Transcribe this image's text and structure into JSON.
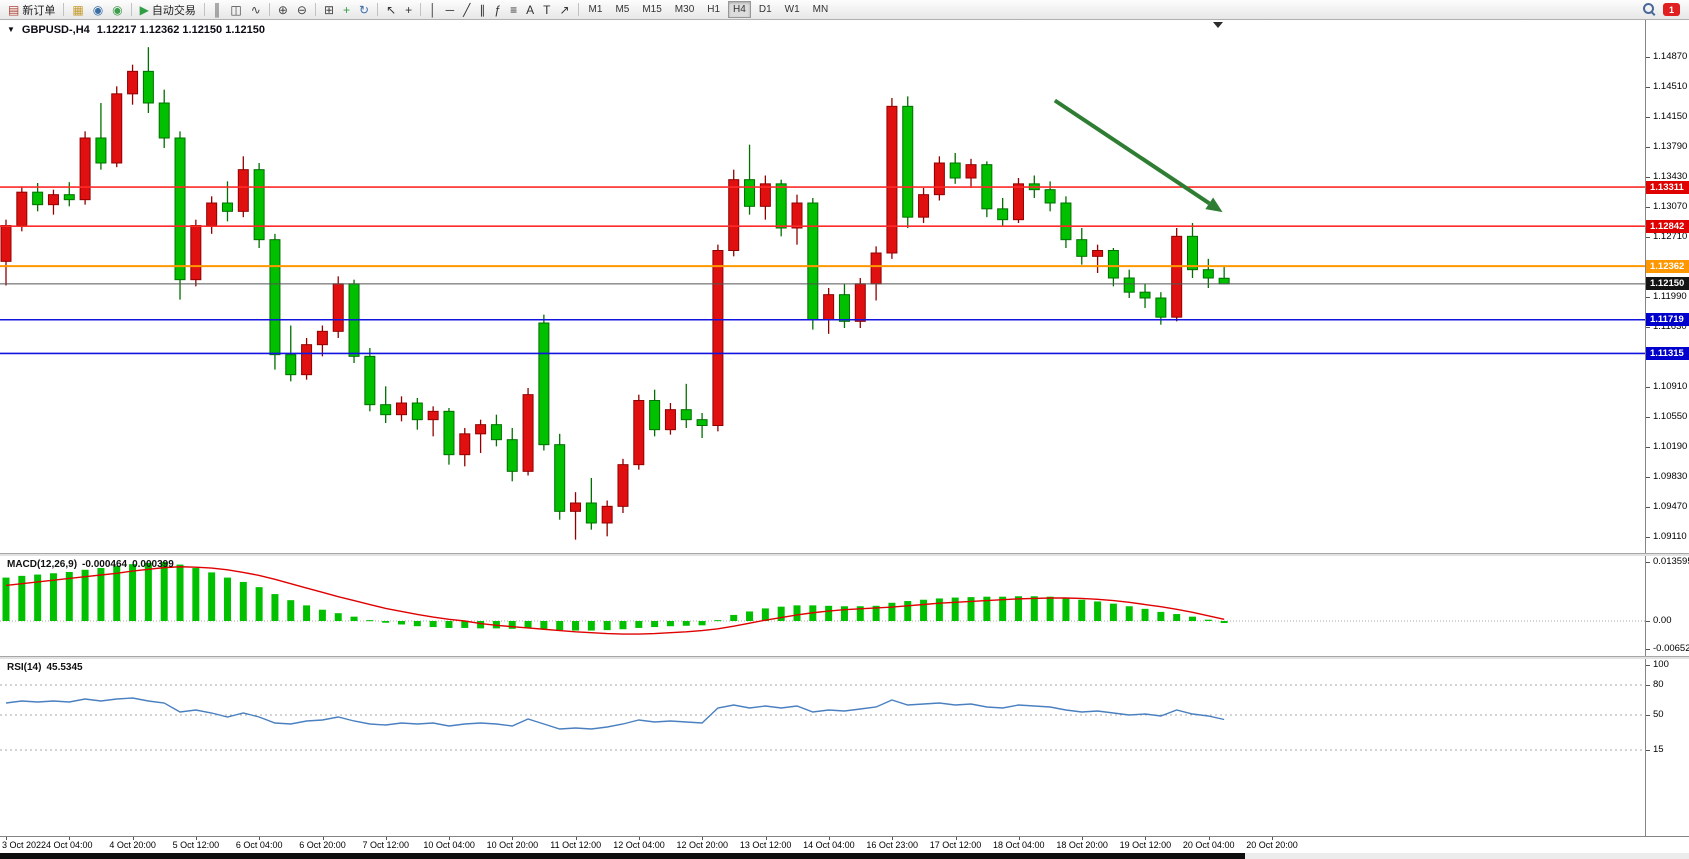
{
  "toolbar": {
    "groups": [
      {
        "items": [
          {
            "button": "new-order-button",
            "icon": "new-order-icon",
            "glyph": "▤",
            "color": "#b04030",
            "label": "新订单"
          }
        ]
      },
      {
        "items": [
          {
            "button": "charts-button",
            "icon": "charts-icon",
            "glyph": "▦",
            "color": "#c59a2b"
          },
          {
            "button": "profiles-button",
            "icon": "profiles-icon",
            "glyph": "◉",
            "color": "#3a6ea5"
          },
          {
            "button": "market-watch-button",
            "icon": "market-watch-icon",
            "glyph": "◉",
            "color": "#3f9e4d"
          }
        ]
      },
      {
        "items": [
          {
            "button": "auto-trading-button",
            "icon": "auto-trading-icon",
            "glyph": "▶",
            "color": "#2f9e44",
            "label": "自动交易"
          }
        ]
      },
      {
        "items": [
          {
            "button": "bar-chart-button",
            "icon": "bar-chart-icon",
            "glyph": "║",
            "color": "#444444"
          },
          {
            "button": "candlestick-chart-button",
            "icon": "candlestick-icon",
            "glyph": "◫",
            "color": "#444444"
          },
          {
            "button": "line-chart-button",
            "icon": "line-chart-icon",
            "glyph": "∿",
            "color": "#444444"
          }
        ]
      },
      {
        "items": [
          {
            "button": "zoom-in-button",
            "icon": "zoom-in-icon",
            "glyph": "⊕",
            "color": "#444444"
          },
          {
            "button": "zoom-out-button",
            "icon": "zoom-out-icon",
            "glyph": "⊖",
            "color": "#444444"
          }
        ]
      },
      {
        "items": [
          {
            "button": "tile-windows-button",
            "icon": "tile-windows-icon",
            "glyph": "⊞",
            "color": "#444444"
          },
          {
            "button": "indicators-button",
            "icon": "indicators-icon",
            "glyph": "+",
            "color": "#2f9e44"
          },
          {
            "button": "periods-button",
            "icon": "periods-icon",
            "glyph": "↻",
            "color": "#3a6ea5"
          }
        ]
      },
      {
        "items": [
          {
            "button": "cursor-button",
            "icon": "cursor-icon",
            "glyph": "↖",
            "color": "#333333"
          },
          {
            "button": "crosshair-button",
            "icon": "crosshair-icon",
            "glyph": "+",
            "color": "#333333"
          }
        ]
      },
      {
        "items": [
          {
            "button": "vertical-line-button",
            "icon": "vertical-line-icon",
            "glyph": "│",
            "color": "#333333"
          },
          {
            "button": "horizontal-line-button",
            "icon": "horizontal-line-icon",
            "glyph": "─",
            "color": "#333333"
          },
          {
            "button": "trendline-button",
            "icon": "trendline-icon",
            "glyph": "╱",
            "color": "#333333"
          },
          {
            "button": "channel-button",
            "icon": "channel-icon",
            "glyph": "∥",
            "color": "#333333"
          },
          {
            "button": "fibonacci-button",
            "icon": "fibonacci-icon",
            "glyph": "ƒ",
            "color": "#333333"
          },
          {
            "button": "grid-levels-button",
            "icon": "grid-levels-icon",
            "glyph": "≡",
            "color": "#333333"
          },
          {
            "button": "text-button",
            "icon": "text-icon",
            "glyph": "A",
            "color": "#333333"
          },
          {
            "button": "text-label-button",
            "icon": "text-label-icon",
            "glyph": "T",
            "color": "#333333"
          },
          {
            "button": "arrows-button",
            "icon": "arrows-icon",
            "glyph": "↗",
            "color": "#333333"
          }
        ]
      }
    ],
    "timeframes": [
      "M1",
      "M5",
      "M15",
      "M30",
      "H1",
      "H4",
      "D1",
      "W1",
      "MN"
    ],
    "active_timeframe": "H4",
    "notification_badge": "1"
  },
  "quote_line": {
    "symbol": "GBPUSD-,H4",
    "ohlc": "1.12217 1.12362 1.12150 1.12150"
  },
  "macd_label": {
    "name": "MACD(12,26,9)",
    "value1": "-0.000464",
    "value2": "0.000399"
  },
  "rsi_label": {
    "name": "RSI(14)",
    "value": "45.5345"
  },
  "chart_data": {
    "type": "candlestick+indicators",
    "symbol": "GBPUSD-",
    "timeframe": "H4",
    "colors": {
      "up": "#e01010",
      "up_edge": "#900000",
      "down": "#00c000",
      "down_edge": "#007000",
      "macd_hist": "#00c000",
      "macd_signal": "#e00000",
      "rsi_line": "#4a80c0"
    },
    "candles": [
      [
        1.1242,
        1.1292,
        1.1213,
        1.1285
      ],
      [
        1.1285,
        1.1332,
        1.1278,
        1.1325
      ],
      [
        1.1325,
        1.1336,
        1.1302,
        1.131
      ],
      [
        1.131,
        1.1328,
        1.1298,
        1.1322
      ],
      [
        1.1322,
        1.1337,
        1.1308,
        1.1316
      ],
      [
        1.1316,
        1.1398,
        1.131,
        1.139
      ],
      [
        1.139,
        1.1432,
        1.1352,
        1.136
      ],
      [
        1.136,
        1.1452,
        1.1355,
        1.1443
      ],
      [
        1.1443,
        1.1478,
        1.143,
        1.147
      ],
      [
        1.147,
        1.1499,
        1.142,
        1.1432
      ],
      [
        1.1432,
        1.1448,
        1.1378,
        1.139
      ],
      [
        1.139,
        1.1398,
        1.1196,
        1.122
      ],
      [
        1.122,
        1.1292,
        1.1212,
        1.1285
      ],
      [
        1.1285,
        1.132,
        1.1275,
        1.1312
      ],
      [
        1.1312,
        1.1338,
        1.129,
        1.1302
      ],
      [
        1.1302,
        1.1368,
        1.1295,
        1.1352
      ],
      [
        1.1352,
        1.136,
        1.1258,
        1.1268
      ],
      [
        1.1268,
        1.1275,
        1.1112,
        1.113
      ],
      [
        1.113,
        1.1165,
        1.1098,
        1.1106
      ],
      [
        1.1106,
        1.115,
        1.11,
        1.1142
      ],
      [
        1.1142,
        1.1165,
        1.1128,
        1.1158
      ],
      [
        1.1158,
        1.1224,
        1.115,
        1.1215
      ],
      [
        1.1215,
        1.122,
        1.112,
        1.1128
      ],
      [
        1.1128,
        1.1138,
        1.1062,
        1.107
      ],
      [
        1.107,
        1.1092,
        1.1048,
        1.1058
      ],
      [
        1.1058,
        1.108,
        1.105,
        1.1072
      ],
      [
        1.1072,
        1.1078,
        1.104,
        1.1052
      ],
      [
        1.1052,
        1.1068,
        1.1032,
        1.1062
      ],
      [
        1.1062,
        1.1066,
        1.0998,
        1.101
      ],
      [
        1.101,
        1.1042,
        1.0996,
        1.1035
      ],
      [
        1.1035,
        1.1052,
        1.1012,
        1.1046
      ],
      [
        1.1046,
        1.1058,
        1.102,
        1.1028
      ],
      [
        1.1028,
        1.1042,
        1.0978,
        1.099
      ],
      [
        1.099,
        1.109,
        1.0985,
        1.1082
      ],
      [
        1.1168,
        1.1178,
        1.1015,
        1.1022
      ],
      [
        1.1022,
        1.1035,
        1.0932,
        1.0942
      ],
      [
        1.0942,
        1.0965,
        1.0908,
        1.0952
      ],
      [
        1.0952,
        1.0982,
        1.092,
        1.0928
      ],
      [
        1.0928,
        1.0955,
        1.0912,
        1.0948
      ],
      [
        1.0948,
        1.1005,
        1.094,
        1.0998
      ],
      [
        1.0998,
        1.1082,
        1.0992,
        1.1075
      ],
      [
        1.1075,
        1.1088,
        1.1032,
        1.104
      ],
      [
        1.104,
        1.1072,
        1.1034,
        1.1064
      ],
      [
        1.1064,
        1.1095,
        1.1042,
        1.1052
      ],
      [
        1.1052,
        1.106,
        1.103,
        1.1045
      ],
      [
        1.1045,
        1.1262,
        1.1038,
        1.1255
      ],
      [
        1.1255,
        1.1352,
        1.1248,
        1.134
      ],
      [
        1.134,
        1.1382,
        1.1298,
        1.1308
      ],
      [
        1.1308,
        1.1345,
        1.1292,
        1.1335
      ],
      [
        1.1335,
        1.134,
        1.1272,
        1.1282
      ],
      [
        1.1282,
        1.1322,
        1.1262,
        1.1312
      ],
      [
        1.1312,
        1.1318,
        1.116,
        1.1172
      ],
      [
        1.1172,
        1.121,
        1.1155,
        1.1202
      ],
      [
        1.1202,
        1.1215,
        1.1162,
        1.117
      ],
      [
        1.117,
        1.1222,
        1.1162,
        1.1215
      ],
      [
        1.1215,
        1.126,
        1.1195,
        1.1252
      ],
      [
        1.1252,
        1.1438,
        1.1245,
        1.1428
      ],
      [
        1.1428,
        1.144,
        1.1282,
        1.1295
      ],
      [
        1.1295,
        1.133,
        1.1288,
        1.1322
      ],
      [
        1.1322,
        1.1368,
        1.1315,
        1.136
      ],
      [
        1.136,
        1.1372,
        1.1335,
        1.1342
      ],
      [
        1.1342,
        1.1365,
        1.133,
        1.1358
      ],
      [
        1.1358,
        1.1362,
        1.1295,
        1.1305
      ],
      [
        1.1305,
        1.1318,
        1.1285,
        1.1292
      ],
      [
        1.1292,
        1.1342,
        1.1288,
        1.1335
      ],
      [
        1.1335,
        1.1345,
        1.1318,
        1.1328
      ],
      [
        1.1328,
        1.1338,
        1.1302,
        1.1312
      ],
      [
        1.1312,
        1.132,
        1.1258,
        1.1268
      ],
      [
        1.1268,
        1.1282,
        1.1238,
        1.1248
      ],
      [
        1.1248,
        1.1262,
        1.1228,
        1.1255
      ],
      [
        1.1255,
        1.1258,
        1.1212,
        1.1222
      ],
      [
        1.1222,
        1.1232,
        1.1198,
        1.1205
      ],
      [
        1.1205,
        1.1215,
        1.1186,
        1.1198
      ],
      [
        1.1198,
        1.1205,
        1.1166,
        1.1175
      ],
      [
        1.1175,
        1.1282,
        1.117,
        1.1272
      ],
      [
        1.1272,
        1.1288,
        1.1222,
        1.1232
      ],
      [
        1.1232,
        1.1245,
        1.121,
        1.1222
      ],
      [
        1.12217,
        1.12362,
        1.1215,
        1.1215
      ]
    ],
    "hlines": [
      {
        "price": 1.13311,
        "label": "1.13311",
        "line_color": "#ff2a2a",
        "badge_bg": "#df0000",
        "width": 1.6
      },
      {
        "price": 1.12842,
        "label": "1.12842",
        "line_color": "#ff2a2a",
        "badge_bg": "#df0000",
        "width": 1.6
      },
      {
        "price": 1.12362,
        "label": "1.12362",
        "line_color": "#ff9800",
        "badge_bg": "#ff9800",
        "width": 2
      },
      {
        "price": 1.1215,
        "label": "1.12150",
        "line_color": "#555555",
        "badge_bg": "#141414",
        "width": 1
      },
      {
        "price": 1.11719,
        "label": "1.11719",
        "line_color": "#1414e0",
        "badge_bg": "#0000cd",
        "width": 1.6
      },
      {
        "price": 1.11315,
        "label": "1.11315",
        "line_color": "#1414e0",
        "badge_bg": "#0000cd",
        "width": 1.6
      }
    ],
    "current_price": "1.12150",
    "price_axis_labels": [
      "1.14870",
      "1.14510",
      "1.14150",
      "1.13790",
      "1.13430",
      "1.13070",
      "1.12710",
      "1.12350",
      "1.11990",
      "1.11630",
      "1.11270",
      "1.10910",
      "1.10550",
      "1.10190",
      "1.09830",
      "1.09470",
      "1.09110"
    ],
    "time_labels": [
      "3 Oct 2022",
      "4 Oct 04:00",
      "4 Oct 20:00",
      "5 Oct 12:00",
      "6 Oct 04:00",
      "6 Oct 20:00",
      "7 Oct 12:00",
      "10 Oct 04:00",
      "10 Oct 20:00",
      "11 Oct 12:00",
      "12 Oct 04:00",
      "12 Oct 20:00",
      "13 Oct 12:00",
      "14 Oct 04:00",
      "16 Oct 23:00",
      "17 Oct 12:00",
      "18 Oct 04:00",
      "18 Oct 20:00",
      "19 Oct 12:00",
      "20 Oct 04:00",
      "20 Oct 20:00"
    ],
    "macd": {
      "histogram": [
        0.01,
        0.0104,
        0.0107,
        0.011,
        0.0113,
        0.0118,
        0.0122,
        0.0127,
        0.0131,
        0.0134,
        0.0136,
        0.013,
        0.0122,
        0.0112,
        0.01,
        0.009,
        0.0078,
        0.0062,
        0.0048,
        0.0036,
        0.0026,
        0.0018,
        0.001,
        0.0002,
        -0.0004,
        -0.0008,
        -0.0012,
        -0.0014,
        -0.0016,
        -0.0016,
        -0.0017,
        -0.0017,
        -0.0018,
        -0.0016,
        -0.0018,
        -0.0021,
        -0.0022,
        -0.0022,
        -0.0021,
        -0.0019,
        -0.0016,
        -0.0014,
        -0.0012,
        -0.0011,
        -0.001,
        0.0002,
        0.0014,
        0.0022,
        0.0029,
        0.0033,
        0.0036,
        0.0036,
        0.0035,
        0.0034,
        0.0034,
        0.0035,
        0.0042,
        0.0046,
        0.0049,
        0.0052,
        0.0054,
        0.0055,
        0.0056,
        0.0056,
        0.0057,
        0.0057,
        0.0056,
        0.0053,
        0.0049,
        0.0045,
        0.004,
        0.0034,
        0.0028,
        0.0021,
        0.0016,
        0.001,
        0.0003,
        -0.000464
      ],
      "signal": [
        0.0082,
        0.0086,
        0.009,
        0.0094,
        0.0098,
        0.0102,
        0.0106,
        0.011,
        0.0115,
        0.0119,
        0.0123,
        0.0125,
        0.0124,
        0.0122,
        0.0118,
        0.0112,
        0.0105,
        0.0096,
        0.0086,
        0.0076,
        0.0066,
        0.0056,
        0.0047,
        0.0038,
        0.0029,
        0.0022,
        0.0015,
        0.0009,
        0.0004,
        0.0,
        -0.0006,
        -0.001,
        -0.0013,
        -0.0016,
        -0.0019,
        -0.0022,
        -0.0025,
        -0.0027,
        -0.0029,
        -0.003,
        -0.003,
        -0.0029,
        -0.0027,
        -0.0025,
        -0.0022,
        -0.0018,
        -0.0012,
        -0.0005,
        0.0002,
        0.0008,
        0.0014,
        0.0019,
        0.0023,
        0.0026,
        0.0028,
        0.003,
        0.0032,
        0.0035,
        0.0038,
        0.0041,
        0.0043,
        0.0045,
        0.0047,
        0.0049,
        0.0051,
        0.0052,
        0.0053,
        0.0053,
        0.0052,
        0.005,
        0.0047,
        0.0043,
        0.0038,
        0.0033,
        0.0027,
        0.002,
        0.0012,
        0.000399
      ],
      "scale": [
        {
          "label": "0.013595",
          "value": 0.013595
        },
        {
          "label": "0.00",
          "value": 0
        },
        {
          "label": "-0.00652",
          "value": -0.00652
        }
      ]
    },
    "rsi": {
      "values": [
        62,
        64,
        63,
        64,
        63,
        66,
        64,
        66,
        67,
        64,
        62,
        53,
        55,
        52,
        48,
        52,
        48,
        42,
        41,
        44,
        45,
        48,
        44,
        41,
        40,
        42,
        41,
        42,
        39,
        41,
        42,
        41,
        39,
        46,
        41,
        36,
        37,
        36,
        38,
        41,
        45,
        43,
        44,
        43,
        42,
        57,
        60,
        57,
        59,
        57,
        59,
        53,
        55,
        54,
        56,
        58,
        65,
        60,
        61,
        62,
        60,
        61,
        58,
        57,
        60,
        59,
        58,
        55,
        53,
        54,
        52,
        50,
        51,
        49,
        55,
        51,
        49,
        45.5
      ],
      "levels": [
        80,
        50,
        15
      ],
      "scale": [
        {
          "label": "100",
          "value": 100
        },
        {
          "label": "80",
          "value": 80
        },
        {
          "label": "50",
          "value": 50
        },
        {
          "label": "15",
          "value": 15
        }
      ]
    },
    "trend_arrow": {
      "i1": 66.3,
      "p1": 1.1435,
      "i2": 76.9,
      "p2": 1.1301,
      "color": "#2e7d32"
    }
  }
}
